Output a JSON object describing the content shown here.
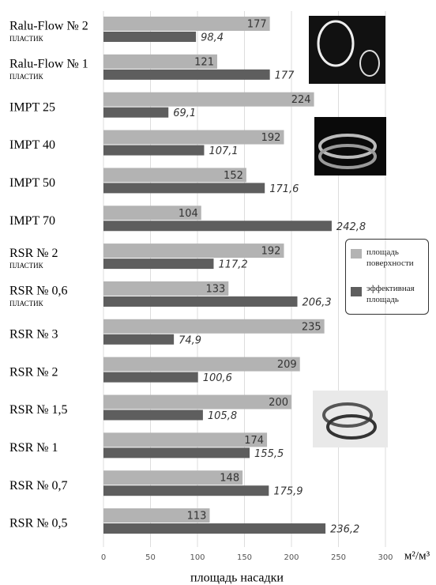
{
  "chart_data": {
    "type": "barh",
    "categories": [
      "Ralu-Flow № 2",
      "Ralu-Flow № 1",
      "IMPT 25",
      "IMPT 40",
      "IMPT 50",
      "IMPT 70",
      "RSR № 2",
      "RSR №  0,6",
      "RSR №  3",
      "RSR № 2",
      "RSR № 1,5",
      "RSR №  1",
      "RSR №  0,7",
      "RSR № 0,5"
    ],
    "category_notes": [
      "ПЛАСТИК",
      "ПЛАСТИК",
      null,
      null,
      null,
      null,
      "ПЛАСТИК",
      "ПЛАСТИК",
      null,
      null,
      null,
      null,
      null,
      null
    ],
    "series": [
      {
        "name": "площадь поверхности",
        "color": "#b3b3b3",
        "values": [
          177,
          121,
          224,
          192,
          152,
          104,
          192,
          133,
          235,
          209,
          200,
          174,
          148,
          113
        ]
      },
      {
        "name": "эффективная площадь",
        "color": "#5e5e5e",
        "values": [
          98.4,
          177,
          69.1,
          107.1,
          171.6,
          242.8,
          117.2,
          206.3,
          74.9,
          100.6,
          105.8,
          155.5,
          175.9,
          236.2
        ],
        "value_labels": [
          "98,4",
          "177",
          "69,1",
          "107,1",
          "171,6",
          "242,8",
          "117,2",
          "206,3",
          "74,9",
          "100,6",
          "105,8",
          "155,5",
          "175,9",
          "236,2"
        ]
      }
    ],
    "xlim": [
      0,
      300
    ],
    "xticks": [
      0,
      50,
      100,
      150,
      200,
      250,
      300
    ],
    "x_label": "площадь насадки",
    "x_unit": "м²/м³",
    "grid": true
  }
}
